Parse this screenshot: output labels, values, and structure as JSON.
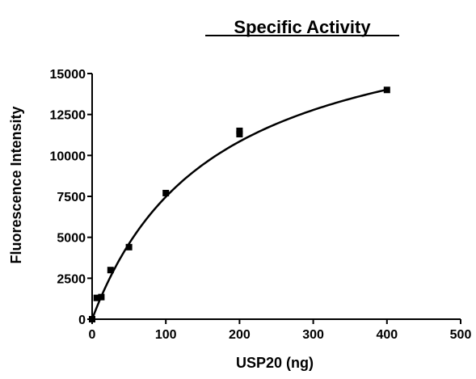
{
  "chart_data": {
    "type": "scatter",
    "title": "Specific Activity",
    "xlabel": "USP20 (ng)",
    "ylabel": "Fluorescence Intensity",
    "xlim": [
      0,
      500
    ],
    "ylim": [
      0,
      15000
    ],
    "x_ticks": [
      0,
      100,
      200,
      300,
      400,
      500
    ],
    "y_ticks": [
      0,
      2500,
      5000,
      7500,
      10000,
      12500,
      15000
    ],
    "grid": false,
    "legend": "none",
    "series": [
      {
        "marker": "square",
        "color": "#000000",
        "points": [
          {
            "x": 0,
            "y": 0
          },
          {
            "x": 6.25,
            "y": 1300
          },
          {
            "x": 12.5,
            "y": 1350
          },
          {
            "x": 25,
            "y": 3000
          },
          {
            "x": 50,
            "y": 4400
          },
          {
            "x": 100,
            "y": 7700
          },
          {
            "x": 200,
            "y": 11300
          },
          {
            "x": 200,
            "y": 11500
          },
          {
            "x": 400,
            "y": 14000
          }
        ]
      }
    ],
    "fit_curve": {
      "model": "saturation",
      "vmax": 19800,
      "k": 165,
      "x_range": [
        0,
        400
      ]
    }
  }
}
